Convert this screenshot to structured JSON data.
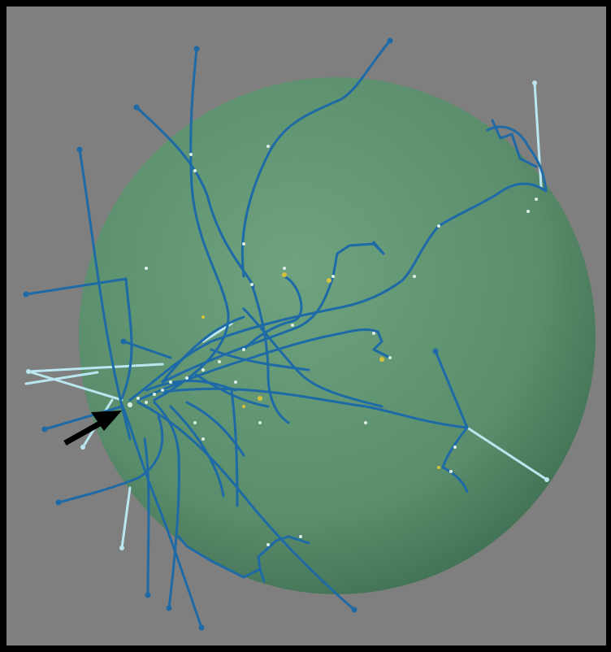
{
  "scene": {
    "background_color": "#7f7f7f",
    "frame_color": "#000000",
    "sphere_color": "#5a8d6b",
    "sphere_highlight": "#6fa37f",
    "sphere_shadow": "#3f6e52",
    "dark_branch_color": "#1e6aa6",
    "light_branch_color": "#b9e6ef",
    "node_color": "#d9efe6",
    "yellow_node_color": "#d2c23a",
    "arrow_color": "#000000"
  },
  "pointer_arrow": {
    "icon": "black-arrow-icon",
    "points_to": "branch-origin-cluster"
  }
}
